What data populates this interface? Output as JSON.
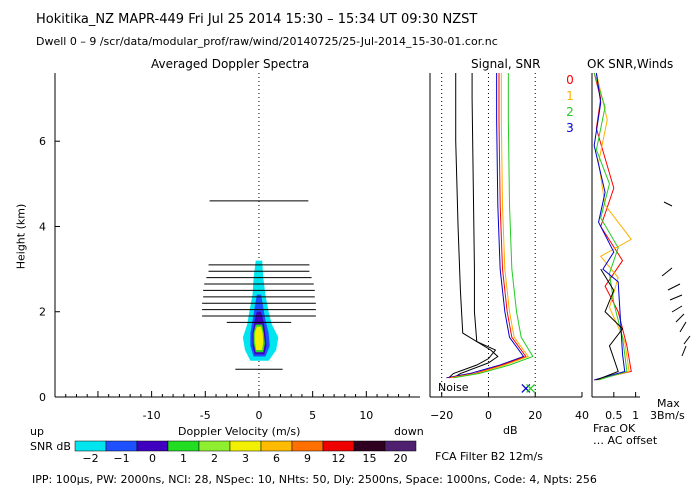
{
  "header": {
    "title": "Hokitika_NZ  MAPR-449  Fri Jul 25 2014 15:30 – 15:34 UT 09:30 NZST",
    "subtitle": "Dwell  0 –  9   /scr/data/modular_prof/raw/wind/20140725/25-Jul-2014_15-30-01.cor.nc"
  },
  "panels": {
    "spectra_title": "Averaged Doppler Spectra",
    "signal_title": "Signal, SNR",
    "ok_title": "OK SNR,Winds"
  },
  "labels": {
    "ylabel": "Height (km)",
    "xlabel_doppler": "Doppler Velocity (m/s)",
    "up": "up",
    "down": "down",
    "snr_db": "SNR dB",
    "db": "dB",
    "noise": "Noise",
    "fca": "FCA Filter B2 12m/s",
    "frac_ok": "Frac OK",
    "ac_offset": "… AC offset",
    "max_line1": "Max",
    "max_line2": "3Bm/s",
    "footer": "IPP: 100μs,  PW: 2000ns,  NCI:  28,  NSpec: 10, NHts: 50,  Dly: 2500ns,  Space: 1000ns,  Code: 4,  Npts: 256"
  },
  "legend_ok": [
    {
      "label": "0",
      "color": "#ff0000"
    },
    {
      "label": "1",
      "color": "#ffb000"
    },
    {
      "label": "2",
      "color": "#22cc22"
    },
    {
      "label": "3",
      "color": "#0000cc"
    }
  ],
  "colorbar": {
    "ticks": [
      "−2",
      "−1",
      "0",
      "1",
      "2",
      "3",
      "6",
      "9",
      "12",
      "15",
      "20"
    ],
    "colors": [
      "#00e5ee",
      "#1e50ff",
      "#4000c0",
      "#22dd22",
      "#90ee30",
      "#f0f000",
      "#ffbb00",
      "#ff7000",
      "#ee0000",
      "#300020",
      "#502070"
    ]
  },
  "chart_data": [
    {
      "type": "heatmap",
      "title": "Averaged Doppler Spectra",
      "xlabel": "Doppler Velocity (m/s)",
      "ylabel": "Height (km)",
      "xlim": [
        -19,
        15
      ],
      "ylim": [
        0,
        7.6
      ],
      "x_ticks": [
        -10,
        -5,
        0,
        5,
        10
      ],
      "y_ticks": [
        0,
        2,
        4,
        6
      ],
      "spectral_width_bars": [
        {
          "height": 0.65,
          "half_width": 2.2
        },
        {
          "height": 1.75,
          "half_width": 3.0
        },
        {
          "height": 1.9,
          "half_width": 5.3
        },
        {
          "height": 2.05,
          "half_width": 5.3
        },
        {
          "height": 2.2,
          "half_width": 5.3
        },
        {
          "height": 2.35,
          "half_width": 5.2
        },
        {
          "height": 2.5,
          "half_width": 5.2
        },
        {
          "height": 2.65,
          "half_width": 5.1
        },
        {
          "height": 2.8,
          "half_width": 4.9
        },
        {
          "height": 2.95,
          "half_width": 4.7
        },
        {
          "height": 3.1,
          "half_width": 4.7
        },
        {
          "height": 4.6,
          "half_width": 4.6
        }
      ],
      "spectrum_contours": [
        {
          "snr_db": -2,
          "color": "#00e5ee",
          "heights": [
            0.85,
            1.1,
            1.4,
            1.7,
            2.0,
            2.4,
            2.8,
            3.2
          ],
          "left": [
            -0.8,
            -1.3,
            -1.5,
            -1.1,
            -0.9,
            -0.6,
            -0.5,
            -0.3
          ],
          "right": [
            0.9,
            1.6,
            1.8,
            1.2,
            0.9,
            0.6,
            0.4,
            0.3
          ]
        },
        {
          "snr_db": -1,
          "color": "#1e50ff",
          "heights": [
            0.95,
            1.2,
            1.5,
            1.8,
            2.1,
            2.4
          ],
          "left": [
            -0.5,
            -0.8,
            -0.8,
            -0.6,
            -0.4,
            -0.2
          ],
          "right": [
            0.6,
            1.0,
            0.9,
            0.6,
            0.4,
            0.2
          ]
        },
        {
          "snr_db": 0,
          "color": "#4000c0",
          "heights": [
            1.0,
            1.2,
            1.5,
            1.8,
            2.0
          ],
          "left": [
            -0.4,
            -0.6,
            -0.6,
            -0.4,
            -0.2
          ],
          "right": [
            0.5,
            0.7,
            0.6,
            0.4,
            0.2
          ]
        },
        {
          "snr_db": 1,
          "color": "#22dd22",
          "heights": [
            1.05,
            1.25,
            1.5,
            1.7
          ],
          "left": [
            -0.3,
            -0.5,
            -0.5,
            -0.3
          ],
          "right": [
            0.4,
            0.55,
            0.45,
            0.3
          ]
        },
        {
          "snr_db": 3,
          "color": "#f0f000",
          "heights": [
            1.1,
            1.3,
            1.5,
            1.65
          ],
          "left": [
            -0.25,
            -0.4,
            -0.4,
            -0.2
          ],
          "right": [
            0.3,
            0.4,
            0.35,
            0.2
          ]
        }
      ]
    },
    {
      "type": "line",
      "title": "Signal, SNR",
      "xlabel": "dB",
      "xlim": [
        -25,
        40
      ],
      "ylim": [
        0,
        7.6
      ],
      "x_ticks": [
        -20,
        0,
        20,
        40
      ],
      "series": [
        {
          "color": "#000000",
          "x": [
            -17,
            -15,
            -5,
            0,
            3,
            -5,
            -6,
            -6,
            -6.5,
            -7,
            -7
          ],
          "y": [
            0.45,
            0.55,
            0.75,
            0.9,
            1.1,
            1.3,
            2.0,
            3.0,
            5.0,
            7.0,
            7.6
          ]
        },
        {
          "color": "#000000",
          "x": [
            -15,
            -12,
            0,
            4,
            1,
            -11,
            -12,
            -13,
            -14,
            -14
          ],
          "y": [
            0.45,
            0.55,
            0.8,
            0.95,
            1.1,
            1.5,
            2.5,
            4.0,
            6.0,
            7.6
          ]
        },
        {
          "color": "#0000cc",
          "x": [
            -18,
            -8,
            5,
            15,
            9,
            7,
            5,
            4,
            3.5,
            3.5
          ],
          "y": [
            0.45,
            0.55,
            0.75,
            0.95,
            1.4,
            2.0,
            3.0,
            4.5,
            6.5,
            7.6
          ]
        },
        {
          "color": "#ff0000",
          "x": [
            -17,
            -6,
            6,
            16,
            10,
            8,
            6,
            5,
            4.5,
            4.5
          ],
          "y": [
            0.45,
            0.55,
            0.75,
            0.95,
            1.4,
            2.0,
            3.0,
            4.5,
            6.5,
            7.6
          ]
        },
        {
          "color": "#ffb000",
          "x": [
            -16,
            -5,
            7,
            17,
            11,
            9,
            7,
            6,
            5.5,
            5.5
          ],
          "y": [
            0.45,
            0.55,
            0.75,
            0.95,
            1.4,
            2.0,
            3.0,
            4.5,
            6.5,
            7.6
          ]
        },
        {
          "color": "#22cc22",
          "x": [
            -15,
            -4,
            9,
            19,
            14,
            12,
            10,
            9,
            8.5,
            8.5
          ],
          "y": [
            0.45,
            0.55,
            0.75,
            0.95,
            1.4,
            2.0,
            3.0,
            4.5,
            6.5,
            7.6
          ]
        }
      ],
      "noise_markers": [
        {
          "x": 16,
          "y": 0.2,
          "color": "#0000cc"
        },
        {
          "x": 18,
          "y": 0.2,
          "color": "#22cc22"
        }
      ]
    },
    {
      "type": "line",
      "title": "OK SNR,Winds",
      "xlabel": "Frac OK",
      "xlim": [
        0,
        1.1
      ],
      "ylim": [
        0,
        7.6
      ],
      "x_ticks": [
        0.5,
        1
      ],
      "x_tick_labels": [
        "0.5",
        "1"
      ],
      "series": [
        {
          "color": "#ff0000",
          "x": [
            0.05,
            0.9,
            0.8,
            0.6,
            0.3,
            0.7,
            0.2,
            0.5,
            0.3,
            0.1,
            0.2,
            0.05
          ],
          "y": [
            0.4,
            0.6,
            1.2,
            2.0,
            2.6,
            3.2,
            4.0,
            4.9,
            5.6,
            6.3,
            7.0,
            7.6
          ]
        },
        {
          "color": "#ffb000",
          "x": [
            0.1,
            0.85,
            0.75,
            0.4,
            0.6,
            0.2,
            0.9,
            0.3,
            0.15,
            0.35,
            0.1
          ],
          "y": [
            0.4,
            0.6,
            1.3,
            2.1,
            2.8,
            3.3,
            3.7,
            4.5,
            5.5,
            6.5,
            7.6
          ]
        },
        {
          "color": "#22cc22",
          "x": [
            0.15,
            0.8,
            0.7,
            0.5,
            0.4,
            0.6,
            0.2,
            0.4,
            0.1,
            0.3,
            0.05
          ],
          "y": [
            0.4,
            0.6,
            1.4,
            2.2,
            2.9,
            3.5,
            4.2,
            5.0,
            5.8,
            6.8,
            7.6
          ]
        },
        {
          "color": "#0000cc",
          "x": [
            0.05,
            0.75,
            0.7,
            0.6,
            0.25,
            0.5,
            0.15,
            0.3,
            0.05,
            0.2,
            0.1
          ],
          "y": [
            0.4,
            0.6,
            1.0,
            2.7,
            3.0,
            3.4,
            4.1,
            4.8,
            5.9,
            6.9,
            7.6
          ]
        },
        {
          "color": "#000000",
          "x": [
            0.1,
            0.6,
            0.4,
            0.7,
            0.3,
            0.5,
            0.2
          ],
          "y": [
            0.4,
            0.6,
            1.2,
            1.6,
            2.0,
            2.5,
            3.0
          ]
        }
      ]
    }
  ]
}
